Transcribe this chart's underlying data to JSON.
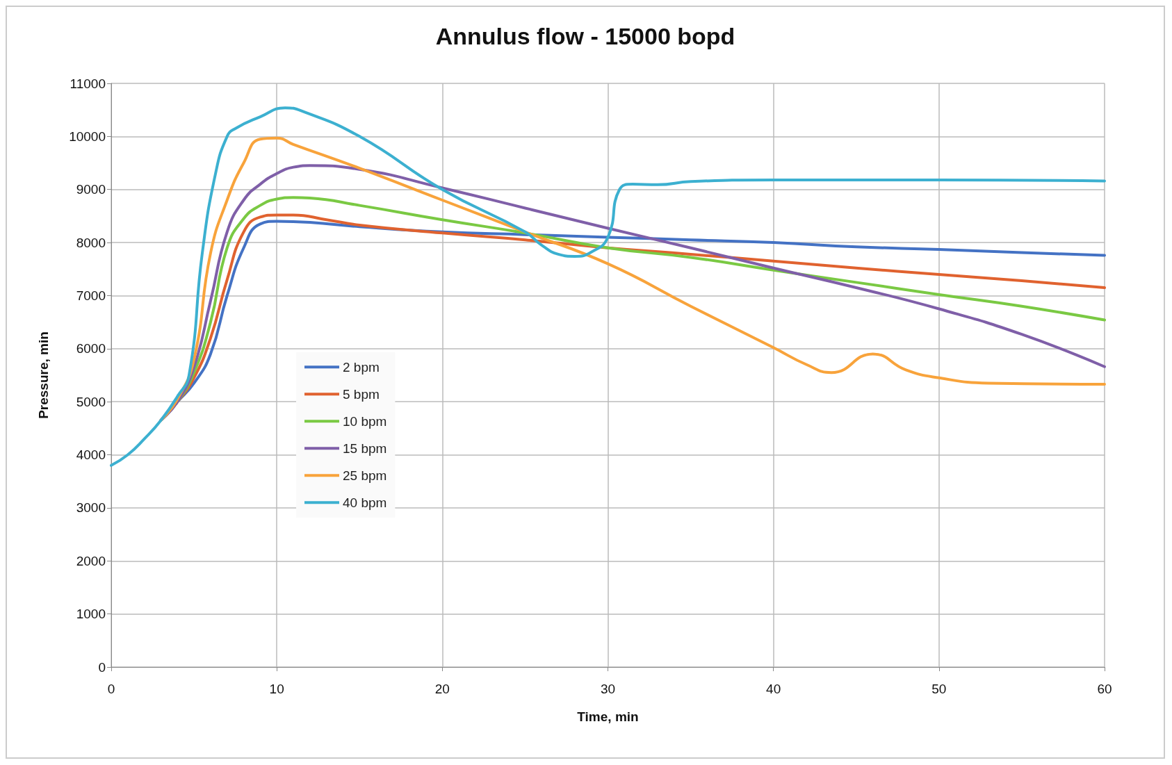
{
  "chart_data": {
    "type": "line",
    "title": "Annulus flow - 15000 bopd",
    "xlabel": "Time, min",
    "ylabel": "Pressure, min",
    "xlim": [
      0,
      60
    ],
    "xticks": [
      0,
      10,
      20,
      30,
      40,
      50,
      60
    ],
    "ylim": [
      0,
      11000
    ],
    "yticks": [
      0,
      1000,
      2000,
      3000,
      4000,
      5000,
      6000,
      7000,
      8000,
      9000,
      10000,
      11000
    ],
    "grid": true,
    "legend": "left",
    "marker": "none",
    "line_style": "solid",
    "series": [
      {
        "name": "2 bpm",
        "color": "#4472c4",
        "x": [
          3,
          4,
          5,
          6,
          7,
          8,
          9,
          10,
          12,
          15,
          20,
          25,
          30,
          35,
          40,
          45,
          50,
          55,
          60
        ],
        "values": [
          4650,
          5000,
          5350,
          5900,
          7000,
          7900,
          8350,
          8400,
          8380,
          8300,
          8200,
          8150,
          8100,
          8050,
          8000,
          7920,
          7870,
          7810,
          7760
        ]
      },
      {
        "name": "5 bpm",
        "color": "#e0622f",
        "x": [
          3,
          4,
          5,
          6,
          7,
          8,
          9,
          10,
          11,
          13,
          15,
          20,
          25,
          30,
          35,
          40,
          45,
          50,
          55,
          60
        ],
        "values": [
          4650,
          5000,
          5450,
          6200,
          7300,
          8200,
          8480,
          8520,
          8520,
          8430,
          8330,
          8180,
          8050,
          7900,
          7780,
          7650,
          7520,
          7400,
          7280,
          7150
        ]
      },
      {
        "name": "10 bpm",
        "color": "#7ac943",
        "x": [
          3,
          4,
          5,
          6,
          7,
          8,
          9,
          10,
          11,
          12,
          15,
          20,
          25,
          30,
          35,
          40,
          45,
          50,
          55,
          60
        ],
        "values": [
          4650,
          5000,
          5550,
          6500,
          7900,
          8450,
          8700,
          8820,
          8850,
          8840,
          8700,
          8430,
          8180,
          7900,
          7720,
          7480,
          7250,
          7020,
          6800,
          6540
        ]
      },
      {
        "name": "15 bpm",
        "color": "#7f5fa8",
        "x": [
          3,
          4,
          5,
          6,
          7,
          8,
          9,
          10,
          11,
          12,
          15,
          20,
          25,
          30,
          35,
          40,
          45,
          50,
          55,
          60
        ],
        "values": [
          4650,
          5000,
          5650,
          6900,
          8200,
          8800,
          9100,
          9300,
          9420,
          9450,
          9380,
          9030,
          8650,
          8270,
          7900,
          7520,
          7150,
          6750,
          6270,
          5660
        ]
      },
      {
        "name": "25 bpm",
        "color": "#f8a33b",
        "x": [
          3,
          4,
          5,
          6,
          7,
          8,
          9,
          10,
          11,
          15,
          20,
          25,
          30,
          35,
          40,
          42,
          43.5,
          46,
          48,
          50,
          53,
          60
        ],
        "values": [
          4650,
          5050,
          5800,
          7800,
          8800,
          9500,
          9950,
          9970,
          9850,
          9400,
          8800,
          8200,
          7600,
          6800,
          6020,
          5700,
          5550,
          5900,
          5600,
          5450,
          5350,
          5330
        ]
      },
      {
        "name": "40 bpm",
        "color": "#3cb0d0",
        "x": [
          0,
          1,
          2,
          3,
          4,
          4.7,
          5.5,
          6.3,
          7,
          7.5,
          9,
          10.5,
          11.5,
          15,
          20,
          25,
          26,
          27,
          28,
          29,
          30,
          30.7,
          31.5,
          33,
          35,
          40,
          50,
          60
        ],
        "values": [
          3800,
          4000,
          4300,
          4650,
          5100,
          5500,
          7800,
          9300,
          10000,
          10150,
          10370,
          10540,
          10480,
          10000,
          9000,
          8200,
          7950,
          7780,
          7740,
          7820,
          8100,
          9000,
          9100,
          9090,
          9150,
          9180,
          9180,
          9160
        ]
      }
    ]
  }
}
